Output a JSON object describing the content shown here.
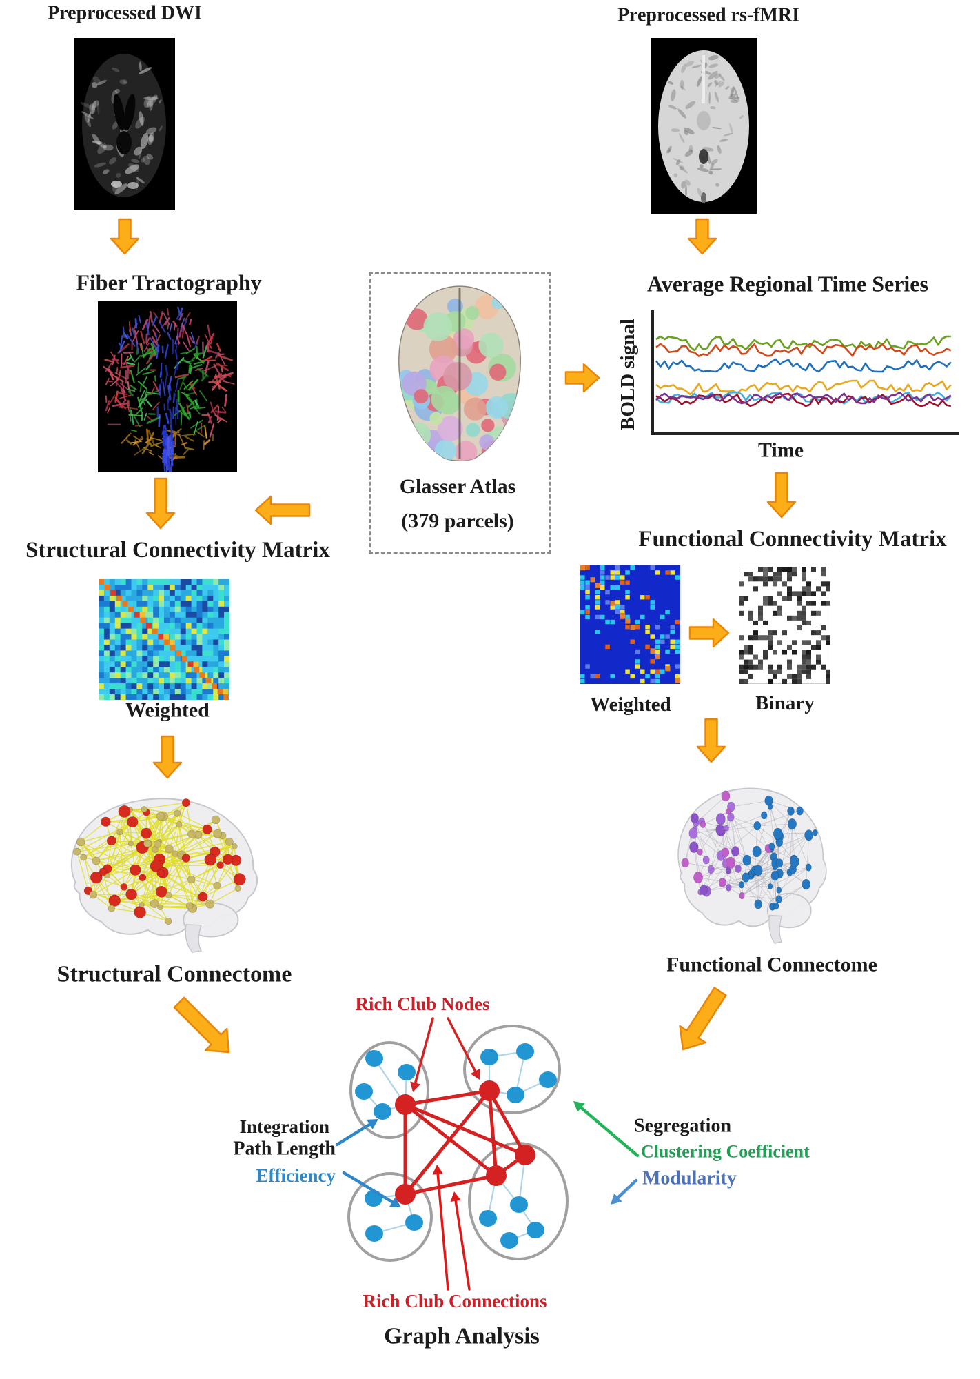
{
  "colors": {
    "arrow_orange": "#FBAE17",
    "arrow_orange_border": "#E8860A",
    "rich_club_red": "#D42121",
    "rich_club_label_red": "#CB2027",
    "module_node_blue": "#2196D3",
    "cluster_gray": "#A0A0A0",
    "intra_edge_blue": "#AFD3E8",
    "efficiency_blue": "#2D87C8",
    "clustering_green": "#1FA055",
    "modularity_blue": "#4C72B8",
    "structural_edge_yellow": "#E0DE24",
    "structural_node_red": "#D62B1E",
    "structural_node_tan": "#C9B768",
    "functional_node_purple": "#9B63D3",
    "functional_node_blue": "#2477C0",
    "functional_edge_gray": "#B3B3BA",
    "axis_black": "#222222",
    "text_black": "#1B1B1B"
  },
  "pipeline": {
    "dwi": {
      "title": "Preprocessed DWI"
    },
    "fmri": {
      "title": "Preprocessed rs-fMRI"
    },
    "tractography": {
      "title": "Fiber Tractography"
    },
    "atlas": {
      "line1": "Glasser Atlas",
      "line2": "(379 parcels)"
    },
    "timeseries": {
      "title": "Average Regional Time Series",
      "y_axis": "BOLD signal",
      "x_axis": "Time"
    },
    "structural_matrix": {
      "title": "Structural Connectivity Matrix",
      "weighted_label": "Weighted"
    },
    "functional_matrix": {
      "title": "Functional Connectivity Matrix",
      "weighted_label": "Weighted",
      "binary_label": "Binary"
    },
    "structural_connectome": {
      "label": "Structural Connectome"
    },
    "functional_connectome": {
      "label": "Functional Connectome"
    }
  },
  "graph_analysis": {
    "title": "Graph Analysis",
    "rich_club_nodes_label": "Rich Club Nodes",
    "rich_club_connections_label": "Rich Club Connections",
    "integration": {
      "heading": "Integration",
      "metric1": "Path Length",
      "metric2": "Efficiency"
    },
    "segregation": {
      "heading": "Segregation",
      "metric1": "Clustering Coefficient",
      "metric2": "Modularity"
    }
  }
}
